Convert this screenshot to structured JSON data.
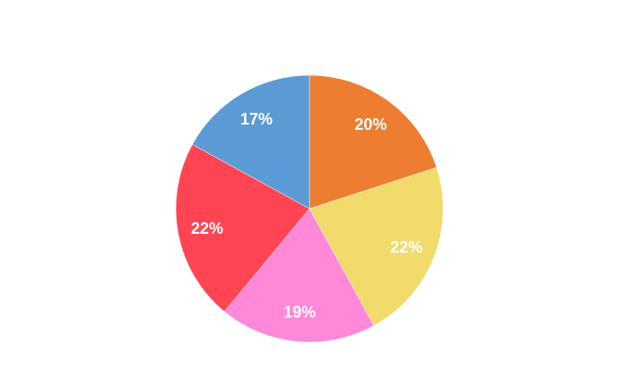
{
  "chart_data": {
    "type": "pie",
    "slices": [
      {
        "label": "20%",
        "value": 20,
        "color": "#ED7D31"
      },
      {
        "label": "22%",
        "value": 22,
        "color": "#F2DA6B"
      },
      {
        "label": "19%",
        "value": 19,
        "color": "#FF88D9"
      },
      {
        "label": "22%",
        "value": 22,
        "color": "#FF4553"
      },
      {
        "label": "17%",
        "value": 17,
        "color": "#5B9BD5"
      }
    ],
    "start": "top",
    "direction": "clockwise",
    "legend": "none"
  }
}
